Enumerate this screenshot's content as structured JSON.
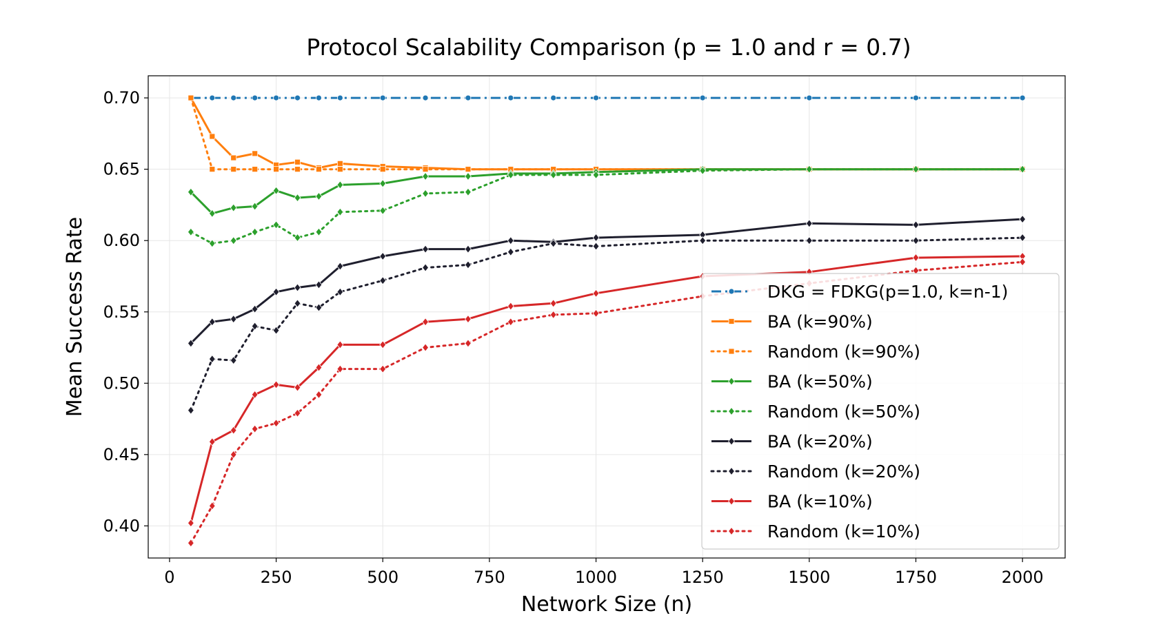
{
  "chart_data": {
    "type": "line",
    "title": "Protocol Scalability Comparison (p = 1.0 and r = 0.7)",
    "xlabel": "Network Size (n)",
    "ylabel": "Mean Success Rate",
    "xlim": [
      -50,
      2100
    ],
    "ylim": [
      0.3775,
      0.7155
    ],
    "xticks": [
      0,
      250,
      500,
      750,
      1000,
      1250,
      1500,
      1750,
      2000
    ],
    "yticks": [
      0.4,
      0.45,
      0.5,
      0.55,
      0.6,
      0.65,
      0.7
    ],
    "ytick_labels": [
      "0.40",
      "0.45",
      "0.50",
      "0.55",
      "0.60",
      "0.65",
      "0.70"
    ],
    "grid": true,
    "legend_position": "lower-right",
    "x": [
      50,
      100,
      150,
      200,
      250,
      300,
      350,
      400,
      500,
      600,
      700,
      800,
      900,
      1000,
      1250,
      1500,
      1750,
      2000
    ],
    "series": [
      {
        "name": "DKG = FDKG(p=1.0, k=n-1)",
        "color": "#1f77b4",
        "style": "dashdot",
        "marker": "circle",
        "values": [
          0.7,
          0.7,
          0.7,
          0.7,
          0.7,
          0.7,
          0.7,
          0.7,
          0.7,
          0.7,
          0.7,
          0.7,
          0.7,
          0.7,
          0.7,
          0.7,
          0.7,
          0.7
        ]
      },
      {
        "name": "BA (k=90%)",
        "color": "#ff7f0e",
        "style": "solid",
        "marker": "square",
        "values": [
          0.7,
          0.673,
          0.658,
          0.661,
          0.653,
          0.655,
          0.651,
          0.654,
          0.652,
          0.651,
          0.65,
          0.65,
          0.65,
          0.65,
          0.65,
          0.65,
          0.65,
          0.65
        ]
      },
      {
        "name": "Random (k=90%)",
        "color": "#ff7f0e",
        "style": "dotted",
        "marker": "square",
        "values": [
          0.7,
          0.65,
          0.65,
          0.65,
          0.65,
          0.65,
          0.65,
          0.65,
          0.65,
          0.65,
          0.65,
          0.65,
          0.65,
          0.65,
          0.65,
          0.65,
          0.65,
          0.65
        ]
      },
      {
        "name": "BA (k=50%)",
        "color": "#2ca02c",
        "style": "solid",
        "marker": "diamond",
        "values": [
          0.634,
          0.619,
          0.623,
          0.624,
          0.635,
          0.63,
          0.631,
          0.639,
          0.64,
          0.645,
          0.645,
          0.647,
          0.647,
          0.648,
          0.65,
          0.65,
          0.65,
          0.65
        ]
      },
      {
        "name": "Random (k=50%)",
        "color": "#2ca02c",
        "style": "dotted",
        "marker": "diamond",
        "values": [
          0.606,
          0.598,
          0.6,
          0.606,
          0.611,
          0.602,
          0.606,
          0.62,
          0.621,
          0.633,
          0.634,
          0.646,
          0.646,
          0.646,
          0.649,
          0.65,
          0.65,
          0.65
        ]
      },
      {
        "name": "BA (k=20%)",
        "color": "#1f1f2e",
        "style": "solid",
        "marker": "diamond",
        "values": [
          0.528,
          0.543,
          0.545,
          0.552,
          0.564,
          0.567,
          0.569,
          0.582,
          0.589,
          0.594,
          0.594,
          0.6,
          0.599,
          0.602,
          0.604,
          0.612,
          0.611,
          0.615
        ]
      },
      {
        "name": "Random (k=20%)",
        "color": "#1f1f2e",
        "style": "dotted",
        "marker": "diamond",
        "values": [
          0.481,
          0.517,
          0.516,
          0.54,
          0.537,
          0.556,
          0.553,
          0.564,
          0.572,
          0.581,
          0.583,
          0.592,
          0.598,
          0.596,
          0.6,
          0.6,
          0.6,
          0.602
        ]
      },
      {
        "name": "BA (k=10%)",
        "color": "#d62728",
        "style": "solid",
        "marker": "diamond",
        "values": [
          0.402,
          0.459,
          0.467,
          0.492,
          0.499,
          0.497,
          0.511,
          0.527,
          0.527,
          0.543,
          0.545,
          0.554,
          0.556,
          0.563,
          0.575,
          0.578,
          0.588,
          0.589
        ]
      },
      {
        "name": "Random (k=10%)",
        "color": "#d62728",
        "style": "dotted",
        "marker": "diamond",
        "values": [
          0.388,
          0.414,
          0.45,
          0.468,
          0.472,
          0.479,
          0.492,
          0.51,
          0.51,
          0.525,
          0.528,
          0.543,
          0.548,
          0.549,
          0.561,
          0.57,
          0.579,
          0.585
        ]
      }
    ]
  }
}
